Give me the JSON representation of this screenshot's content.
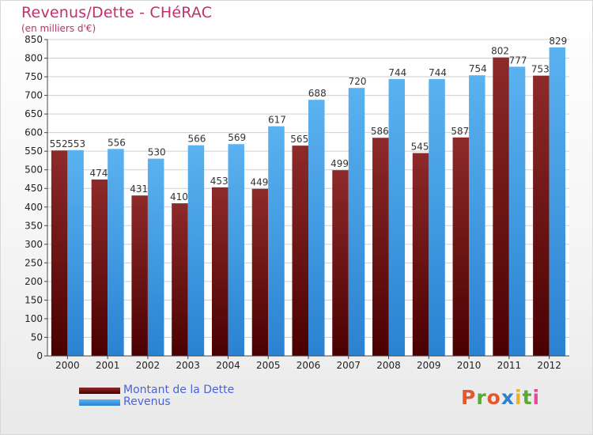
{
  "header": {
    "title": "Revenus/Dette - CHéRAC",
    "subtitle": "(en milliers d'€)"
  },
  "legend": [
    {
      "label": "Montant de la Dette",
      "color": "#6b0d0d"
    },
    {
      "label": "Revenus",
      "color": "#3f9fe6"
    }
  ],
  "logo": {
    "text": "Proxiti",
    "colors": [
      "#e8562a",
      "#5aa83a",
      "#e8562a",
      "#2f7fd0",
      "#e8b12a",
      "#5aa83a",
      "#e84a9a"
    ]
  },
  "chart_data": {
    "type": "bar",
    "categories": [
      "2000",
      "2001",
      "2002",
      "2003",
      "2004",
      "2005",
      "2006",
      "2007",
      "2008",
      "2009",
      "2010",
      "2011",
      "2012"
    ],
    "series": [
      {
        "name": "Montant de la Dette",
        "values": [
          552,
          474,
          431,
          410,
          453,
          449,
          565,
          499,
          586,
          545,
          587,
          802,
          753
        ],
        "color": "#7a1818"
      },
      {
        "name": "Revenus",
        "values": [
          553,
          556,
          530,
          566,
          569,
          617,
          688,
          720,
          744,
          744,
          754,
          777,
          829
        ],
        "color": "#4aa6ea"
      }
    ],
    "ylim": [
      0,
      850
    ],
    "ytick_step": 50,
    "grid": true,
    "legend_position": "bottom-left"
  }
}
